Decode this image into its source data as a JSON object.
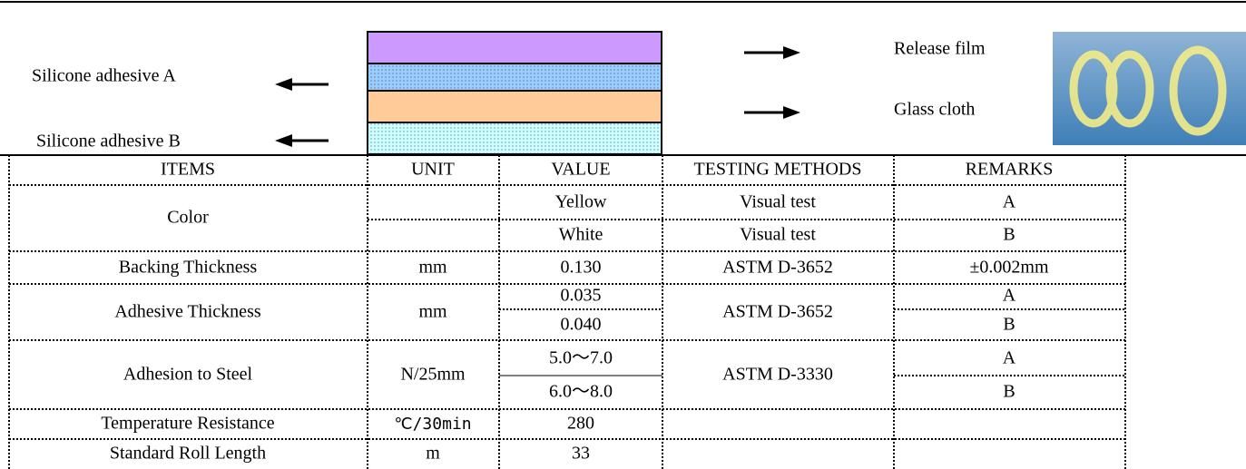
{
  "diagram": {
    "labels_left": [
      "Silicone  adhesive A",
      "Silicone adhesive B"
    ],
    "labels_right": [
      "Release  film",
      "Glass  cloth"
    ]
  },
  "table": {
    "header": [
      "ITEMS",
      "UNIT",
      "VALUE",
      "TESTING METHODS",
      "REMARKS"
    ],
    "rows": [
      {
        "item": "Color",
        "value": [
          "Yellow",
          "White"
        ],
        "method": [
          "Visual test",
          "Visual test"
        ],
        "remarks": [
          "A",
          "B"
        ]
      },
      {
        "item": "Backing Thickness",
        "unit": "mm",
        "value": "0.130",
        "method": "ASTM D-3652",
        "remarks": "±0.002mm"
      },
      {
        "item": "Adhesive Thickness",
        "unit": "mm",
        "value": [
          "0.035",
          "0.040"
        ],
        "method": "ASTM D-3652",
        "remarks": [
          "A",
          "B"
        ]
      },
      {
        "item": "Adhesion to Steel",
        "unit": "N/25mm",
        "value": [
          "5.0～7.0",
          "6.0～8.0"
        ],
        "method": "ASTM D-3330",
        "remarks": [
          "A",
          "B"
        ]
      },
      {
        "item": "Temperature Resistance",
        "unit": "℃/30min",
        "value": "280"
      },
      {
        "item": "Standard Roll Length",
        "unit": "m",
        "value": "33"
      }
    ]
  }
}
